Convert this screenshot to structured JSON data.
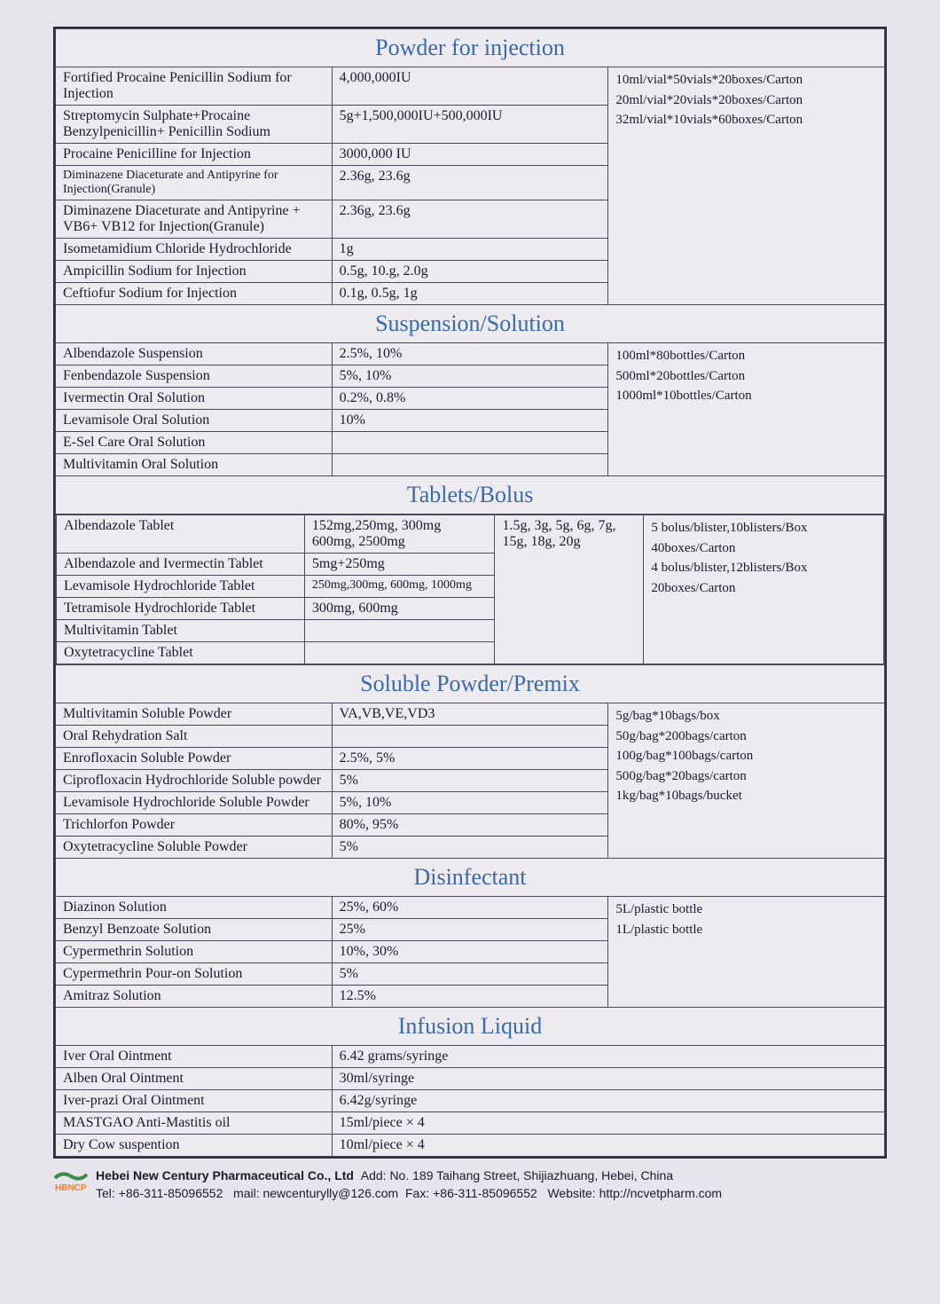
{
  "page": {
    "background_color": "#e8e4ec",
    "border_color": "#2a2a3a",
    "header_color": "#3a6aa8",
    "text_color": "#1a1a2a",
    "header_fontsize": 26,
    "body_fontsize": 16,
    "font_family": "Times New Roman"
  },
  "sections": {
    "powder": {
      "title": "Powder for injection",
      "col_widths": [
        "41%",
        "34%",
        "25%"
      ],
      "rows": [
        {
          "name": "Fortified Procaine Penicillin Sodium for Injection",
          "spec": "4,000,000IU"
        },
        {
          "name": "Streptomycin Sulphate+Procaine Benzylpenicillin+ Penicillin Sodium",
          "spec": "5g+1,500,000IU+500,000IU"
        },
        {
          "name": "Procaine Penicilline for Injection",
          "spec": "3000,000 IU"
        },
        {
          "name": "Diminazene Diaceturate and Antipyrine for Injection(Granule)",
          "name_small": true,
          "spec": "2.36g, 23.6g"
        },
        {
          "name": "Diminazene Diaceturate and Antipyrine + VB6+ VB12 for Injection(Granule)",
          "spec": "2.36g, 23.6g"
        },
        {
          "name": "Isometamidium Chloride Hydrochloride",
          "spec": "1g"
        },
        {
          "name": "Ampicillin Sodium for Injection",
          "spec": "0.5g, 10.g, 2.0g"
        },
        {
          "name": "Ceftiofur Sodium for Injection",
          "spec": "0.1g, 0.5g, 1g"
        }
      ],
      "packaging": [
        "10ml/vial*50vials*20boxes/Carton",
        "20ml/vial*20vials*20boxes/Carton",
        "32ml/vial*10vials*60boxes/Carton"
      ]
    },
    "suspension": {
      "title": "Suspension/Solution",
      "col_widths": [
        "41%",
        "34%",
        "25%"
      ],
      "rows": [
        {
          "name": "Albendazole Suspension",
          "spec": "2.5%, 10%"
        },
        {
          "name": "Fenbendazole Suspension",
          "spec": "5%, 10%"
        },
        {
          "name": "Ivermectin Oral Solution",
          "spec": "0.2%, 0.8%"
        },
        {
          "name": "Levamisole Oral Solution",
          "spec": "10%"
        },
        {
          "name": "E-Sel Care Oral Solution",
          "spec": ""
        },
        {
          "name": "Multivitamin Oral Solution",
          "spec": ""
        }
      ],
      "packaging": [
        "100ml*80bottles/Carton",
        "500ml*20bottles/Carton",
        "1000ml*10bottles/Carton"
      ]
    },
    "tablets": {
      "title": "Tablets/Bolus",
      "col_widths": [
        "30%",
        "23%",
        "18%",
        "29%"
      ],
      "rows": [
        {
          "name": "Albendazole Tablet",
          "spec": "152mg,250mg, 300mg 600mg, 2500mg"
        },
        {
          "name": "Albendazole and Ivermectin Tablet",
          "spec": "5mg+250mg"
        },
        {
          "name": "Levamisole Hydrochloride Tablet",
          "spec": "250mg,300mg, 600mg, 1000mg",
          "spec_small": true
        },
        {
          "name": "Tetramisole Hydrochloride Tablet",
          "spec": "300mg, 600mg"
        },
        {
          "name": "Multivitamin Tablet",
          "spec": ""
        },
        {
          "name": "Oxytetracycline Tablet",
          "spec": ""
        }
      ],
      "extra_spec": "1.5g, 3g, 5g, 6g, 7g, 15g, 18g, 20g",
      "packaging": [
        "5 bolus/blister,10blisters/Box",
        "40boxes/Carton",
        "4 bolus/blister,12blisters/Box",
        "20boxes/Carton"
      ]
    },
    "soluble": {
      "title": "Soluble Powder/Premix",
      "col_widths": [
        "41%",
        "34%",
        "25%"
      ],
      "rows": [
        {
          "name": "Multivitamin Soluble Powder",
          "spec": "VA,VB,VE,VD3"
        },
        {
          "name": "Oral Rehydration Salt",
          "spec": ""
        },
        {
          "name": "Enrofloxacin Soluble Powder",
          "spec": "2.5%, 5%"
        },
        {
          "name": "Ciprofloxacin Hydrochloride Soluble powder",
          "spec": "5%"
        },
        {
          "name": "Levamisole Hydrochloride Soluble Powder",
          "spec": "5%, 10%"
        },
        {
          "name": "Trichlorfon  Powder",
          "spec": "80%,  95%"
        },
        {
          "name": "Oxytetracycline Soluble Powder",
          "spec": "5%"
        }
      ],
      "packaging": [
        "5g/bag*10bags/box",
        "50g/bag*200bags/carton",
        "100g/bag*100bags/carton",
        "500g/bag*20bags/carton",
        "1kg/bag*10bags/bucket"
      ]
    },
    "disinfectant": {
      "title": "Disinfectant",
      "col_widths": [
        "41%",
        "34%",
        "25%"
      ],
      "rows": [
        {
          "name": "Diazinon Solution",
          "spec": "25%, 60%"
        },
        {
          "name": "Benzyl Benzoate Solution",
          "spec": "25%"
        },
        {
          "name": "Cypermethrin Solution",
          "spec": "10%, 30%"
        },
        {
          "name": "Cypermethrin Pour-on Solution",
          "spec": "5%"
        },
        {
          "name": "Amitraz Solution",
          "spec": "12.5%"
        }
      ],
      "packaging": [
        "5L/plastic bottle",
        "1L/plastic bottle"
      ]
    },
    "infusion": {
      "title": "Infusion Liquid",
      "col_widths": [
        "41%",
        "59%"
      ],
      "rows": [
        {
          "name": "Iver Oral Ointment",
          "spec": "6.42 grams/syringe"
        },
        {
          "name": "Alben Oral Ointment",
          "spec": "30ml/syringe"
        },
        {
          "name": "Iver-prazi Oral Ointment",
          "spec": "6.42g/syringe"
        },
        {
          "name": "MASTGAO Anti-Mastitis oil",
          "spec": "15ml/piece × 4"
        },
        {
          "name": "Dry Cow suspention",
          "spec": "10ml/piece × 4"
        }
      ]
    }
  },
  "footer": {
    "company": "Hebei New Century Pharmaceutical Co., Ltd",
    "address": "Add: No. 189 Taihang Street, Shijiazhuang, Hebei, China",
    "tel": "Tel: +86-311-85096552",
    "mail": "mail: newcenturylly@126.com",
    "fax": "Fax: +86-311-85096552",
    "website": "Website: http://ncvetpharm.com",
    "logo_text": "HBNCP",
    "logo_color": "#f08030"
  }
}
